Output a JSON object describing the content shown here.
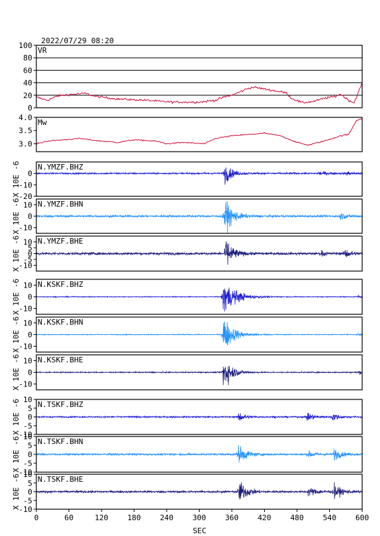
{
  "header": {
    "datetime": "2022/07/29 08:20"
  },
  "chart_data": {
    "type": "line",
    "x_unit": "SEC",
    "xlim": [
      0,
      600
    ],
    "xticks": [
      "0",
      "60",
      "120",
      "180",
      "240",
      "300",
      "360",
      "420",
      "480",
      "540",
      "600"
    ],
    "panels": [
      {
        "label": "VR",
        "color": "#d0103a",
        "ylim": [
          0,
          100
        ],
        "yticks": [
          "0",
          "20",
          "40",
          "60",
          "80",
          "100"
        ],
        "grid": true,
        "series": [
          [
            0,
            17
          ],
          [
            20,
            12
          ],
          [
            40,
            19
          ],
          [
            60,
            21
          ],
          [
            90,
            23
          ],
          [
            110,
            18
          ],
          [
            150,
            14
          ],
          [
            200,
            12
          ],
          [
            250,
            9
          ],
          [
            300,
            9
          ],
          [
            330,
            12
          ],
          [
            345,
            17
          ],
          [
            360,
            20
          ],
          [
            390,
            31
          ],
          [
            400,
            33
          ],
          [
            420,
            30
          ],
          [
            440,
            27
          ],
          [
            460,
            24
          ],
          [
            470,
            15
          ],
          [
            490,
            8
          ],
          [
            510,
            10
          ],
          [
            530,
            15
          ],
          [
            550,
            18
          ],
          [
            560,
            22
          ],
          [
            575,
            12
          ],
          [
            585,
            8
          ],
          [
            590,
            18
          ],
          [
            600,
            40
          ]
        ]
      },
      {
        "label": "Mw",
        "color": "#d0103a",
        "ylim": [
          2.7,
          4.0
        ],
        "yticks": [
          "3.0",
          "3.5",
          "4.0"
        ],
        "grid": false,
        "series": [
          [
            0,
            3.0
          ],
          [
            20,
            3.1
          ],
          [
            50,
            3.15
          ],
          [
            80,
            3.2
          ],
          [
            120,
            3.1
          ],
          [
            150,
            3.05
          ],
          [
            180,
            3.15
          ],
          [
            220,
            3.1
          ],
          [
            240,
            3.0
          ],
          [
            270,
            3.05
          ],
          [
            310,
            3.0
          ],
          [
            330,
            3.2
          ],
          [
            360,
            3.3
          ],
          [
            390,
            3.35
          ],
          [
            420,
            3.4
          ],
          [
            450,
            3.3
          ],
          [
            480,
            3.05
          ],
          [
            500,
            2.95
          ],
          [
            530,
            3.1
          ],
          [
            560,
            3.3
          ],
          [
            575,
            3.35
          ],
          [
            590,
            3.9
          ],
          [
            600,
            3.95
          ]
        ]
      },
      {
        "label": "N.YMZF.BHZ",
        "color": "#1c1cd4",
        "ylabel": "X 10E -6",
        "ylim": [
          -20,
          10
        ],
        "yticks": [
          "-20",
          "-10",
          "0"
        ],
        "waveform": {
          "noise": 0.6,
          "events": [
            {
              "t": 346,
              "amp": 9,
              "decay": 12
            },
            {
              "t": 520,
              "amp": 1.2,
              "decay": 20
            },
            {
              "t": 570,
              "amp": 1.5,
              "decay": 15
            }
          ]
        }
      },
      {
        "label": "N.YMZF.BHN",
        "color": "#1e90ff",
        "ylabel": "X 10E -6",
        "ylim": [
          -15,
          15
        ],
        "yticks": [
          "-10",
          "0",
          "10"
        ],
        "waveform": {
          "noise": 0.8,
          "events": [
            {
              "t": 346,
              "amp": 14,
              "decay": 14
            },
            {
              "t": 560,
              "amp": 2.5,
              "decay": 12
            }
          ]
        }
      },
      {
        "label": "N.YMZF.BHE",
        "color": "#1a1a78",
        "ylabel": "X 10E -6",
        "ylim": [
          -15,
          15
        ],
        "yticks": [
          "-10",
          "-5",
          "0",
          "5",
          "10"
        ],
        "waveform": {
          "noise": 0.9,
          "events": [
            {
              "t": 348,
              "amp": 13,
              "decay": 12
            },
            {
              "t": 525,
              "amp": 2.2,
              "decay": 6
            },
            {
              "t": 568,
              "amp": 3.5,
              "decay": 10
            }
          ]
        }
      },
      {
        "label": "N.KSKF.BHZ",
        "color": "#1c1cd4",
        "ylabel": "X 10E -6",
        "ylim": [
          -15,
          15
        ],
        "yticks": [
          "-10",
          "0",
          "10"
        ],
        "waveform": {
          "noise": 0.3,
          "events": [
            {
              "t": 343,
              "amp": 14,
              "decay": 22
            },
            {
              "t": 592,
              "amp": 1.2,
              "decay": 8
            }
          ]
        }
      },
      {
        "label": "N.KSKF.BHN",
        "color": "#1e90ff",
        "ylabel": "X 10E -6",
        "ylim": [
          -15,
          15
        ],
        "yticks": [
          "-10",
          "0",
          "10"
        ],
        "waveform": {
          "noise": 0.3,
          "events": [
            {
              "t": 344,
              "amp": 14,
              "decay": 18
            },
            {
              "t": 592,
              "amp": 1.1,
              "decay": 8
            }
          ]
        }
      },
      {
        "label": "N.KSKF.BHE",
        "color": "#1a1a78",
        "ylabel": "X 10E -6",
        "ylim": [
          -15,
          15
        ],
        "yticks": [
          "-10",
          "0",
          "10"
        ],
        "waveform": {
          "noise": 0.4,
          "events": [
            {
              "t": 344,
              "amp": 14,
              "decay": 14
            },
            {
              "t": 592,
              "amp": 1.5,
              "decay": 8
            }
          ]
        }
      },
      {
        "label": "N.TSKF.BHZ",
        "color": "#1c1cd4",
        "ylabel": "X 10E -6",
        "ylim": [
          -10,
          10
        ],
        "yticks": [
          "-10",
          "-5",
          "0",
          "5",
          "10"
        ],
        "waveform": {
          "noise": 0.35,
          "events": [
            {
              "t": 372,
              "amp": 2.5,
              "decay": 12
            },
            {
              "t": 498,
              "amp": 2,
              "decay": 15
            },
            {
              "t": 545,
              "amp": 2,
              "decay": 12
            }
          ]
        }
      },
      {
        "label": "N.TSKF.BHN",
        "color": "#1e90ff",
        "ylabel": "X 10E -6",
        "ylim": [
          -10,
          10
        ],
        "yticks": [
          "-10",
          "-5",
          "0",
          "5",
          "10"
        ],
        "waveform": {
          "noise": 0.45,
          "events": [
            {
              "t": 372,
              "amp": 5,
              "decay": 14
            },
            {
              "t": 500,
              "amp": 1.5,
              "decay": 15
            },
            {
              "t": 548,
              "amp": 3,
              "decay": 12
            }
          ]
        }
      },
      {
        "label": "N.TSKF.BHE",
        "color": "#1a1a78",
        "ylabel": "X 10E -6",
        "ylim": [
          -10,
          10
        ],
        "yticks": [
          "-10",
          "-5",
          "0",
          "5",
          "10"
        ],
        "waveform": {
          "noise": 0.5,
          "events": [
            {
              "t": 372,
              "amp": 6,
              "decay": 14
            },
            {
              "t": 500,
              "amp": 2,
              "decay": 18
            },
            {
              "t": 548,
              "amp": 3.5,
              "decay": 12
            }
          ]
        }
      }
    ]
  }
}
